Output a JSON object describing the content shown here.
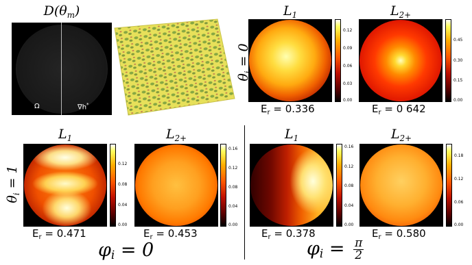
{
  "figure": {
    "top_left": {
      "title": "D(θ",
      "title_sub": "m",
      "title_close": ")",
      "left_label": "Ω",
      "right_label": "∇h",
      "right_label_sup": "*"
    },
    "row_labels": {
      "top_main": "θ",
      "top_sub": "i",
      "top_value": " = 0",
      "bottom_main": "θ",
      "bottom_sub": "i",
      "bottom_value": " = 1"
    },
    "panels": [
      {
        "id": "p1",
        "title": "L",
        "title_sub": "1",
        "er_label": "E",
        "er_sub": "r",
        "er_value": " = 0.336",
        "ticks": [
          "0.12",
          "0.09",
          "0.06",
          "0.03",
          "0.00"
        ]
      },
      {
        "id": "p2",
        "title": "L",
        "title_sub": "2+",
        "er_label": "E",
        "er_sub": "r",
        "er_value": " = 0 642",
        "ticks": [
          "0.45",
          "0.30",
          "0.15",
          "0.00"
        ]
      },
      {
        "id": "p3",
        "title": "L",
        "title_sub": "1",
        "er_label": "E",
        "er_sub": "r",
        "er_value": " = 0.471",
        "ticks": [
          "0.12",
          "0.08",
          "0.04",
          "0.00"
        ]
      },
      {
        "id": "p4",
        "title": "L",
        "title_sub": "2+",
        "er_label": "E",
        "er_sub": "r",
        "er_value": " = 0.453",
        "ticks": [
          "0.16",
          "0.12",
          "0.08",
          "0.04",
          "0.00"
        ]
      },
      {
        "id": "p5",
        "title": "L",
        "title_sub": "1",
        "er_label": "E",
        "er_sub": "r",
        "er_value": " = 0.378",
        "ticks": [
          "0.16",
          "0.12",
          "0.08",
          "0.04",
          "0.00"
        ]
      },
      {
        "id": "p6",
        "title": "L",
        "title_sub": "2+",
        "er_label": "E",
        "er_sub": "r",
        "er_value": " = 0.580",
        "ticks": [
          "0.18",
          "0.12",
          "0.06",
          "0.00"
        ]
      }
    ],
    "bottom_labels": {
      "left_main": "φ",
      "left_sub": "i",
      "left_value": " = 0",
      "right_main": "φ",
      "right_sub": "i",
      "right_eq": " = ",
      "right_num": "π",
      "right_den": "2"
    }
  }
}
